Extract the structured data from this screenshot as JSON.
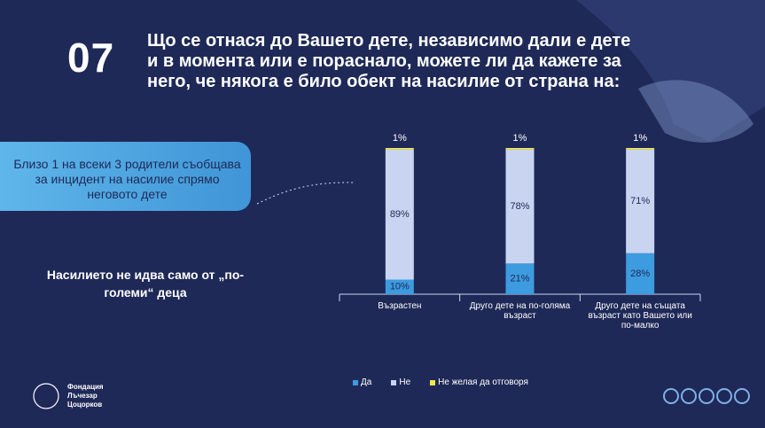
{
  "slide": {
    "number": "07",
    "title": "Що се отнася до Вашето дете, независимо дали е дете и в момента или е пораснало, можете ли да кажете за него, че някога е било обект на насилие от страна на:",
    "callout": "Близо 1 на всеки 3 родители съобщава за инцидент на насилие спрямо неговото дете",
    "note": "Насилието не идва само от „по-големи“ деца",
    "logo": "Фондация Лъчезар Цоцорков"
  },
  "chart_data": {
    "type": "stacked-bar",
    "categories": [
      "Възрастен",
      "Друго дете на по-голяма възраст",
      "Друго дете на същата възраст като Вашето или по-малко"
    ],
    "series": [
      {
        "name": "Да",
        "color": "#3d9be0",
        "values": [
          10,
          21,
          28
        ],
        "value_labels": [
          "10%",
          "21%",
          "28%"
        ]
      },
      {
        "name": "Не",
        "color": "#c9d4f1",
        "values": [
          89,
          78,
          71
        ],
        "value_labels": [
          "89%",
          "78%",
          "71%"
        ]
      },
      {
        "name": "Не желая да отговоря",
        "color": "#f2e84b",
        "values": [
          1,
          1,
          1
        ],
        "value_labels": [
          "1%",
          "1%",
          "1%"
        ]
      }
    ]
  }
}
